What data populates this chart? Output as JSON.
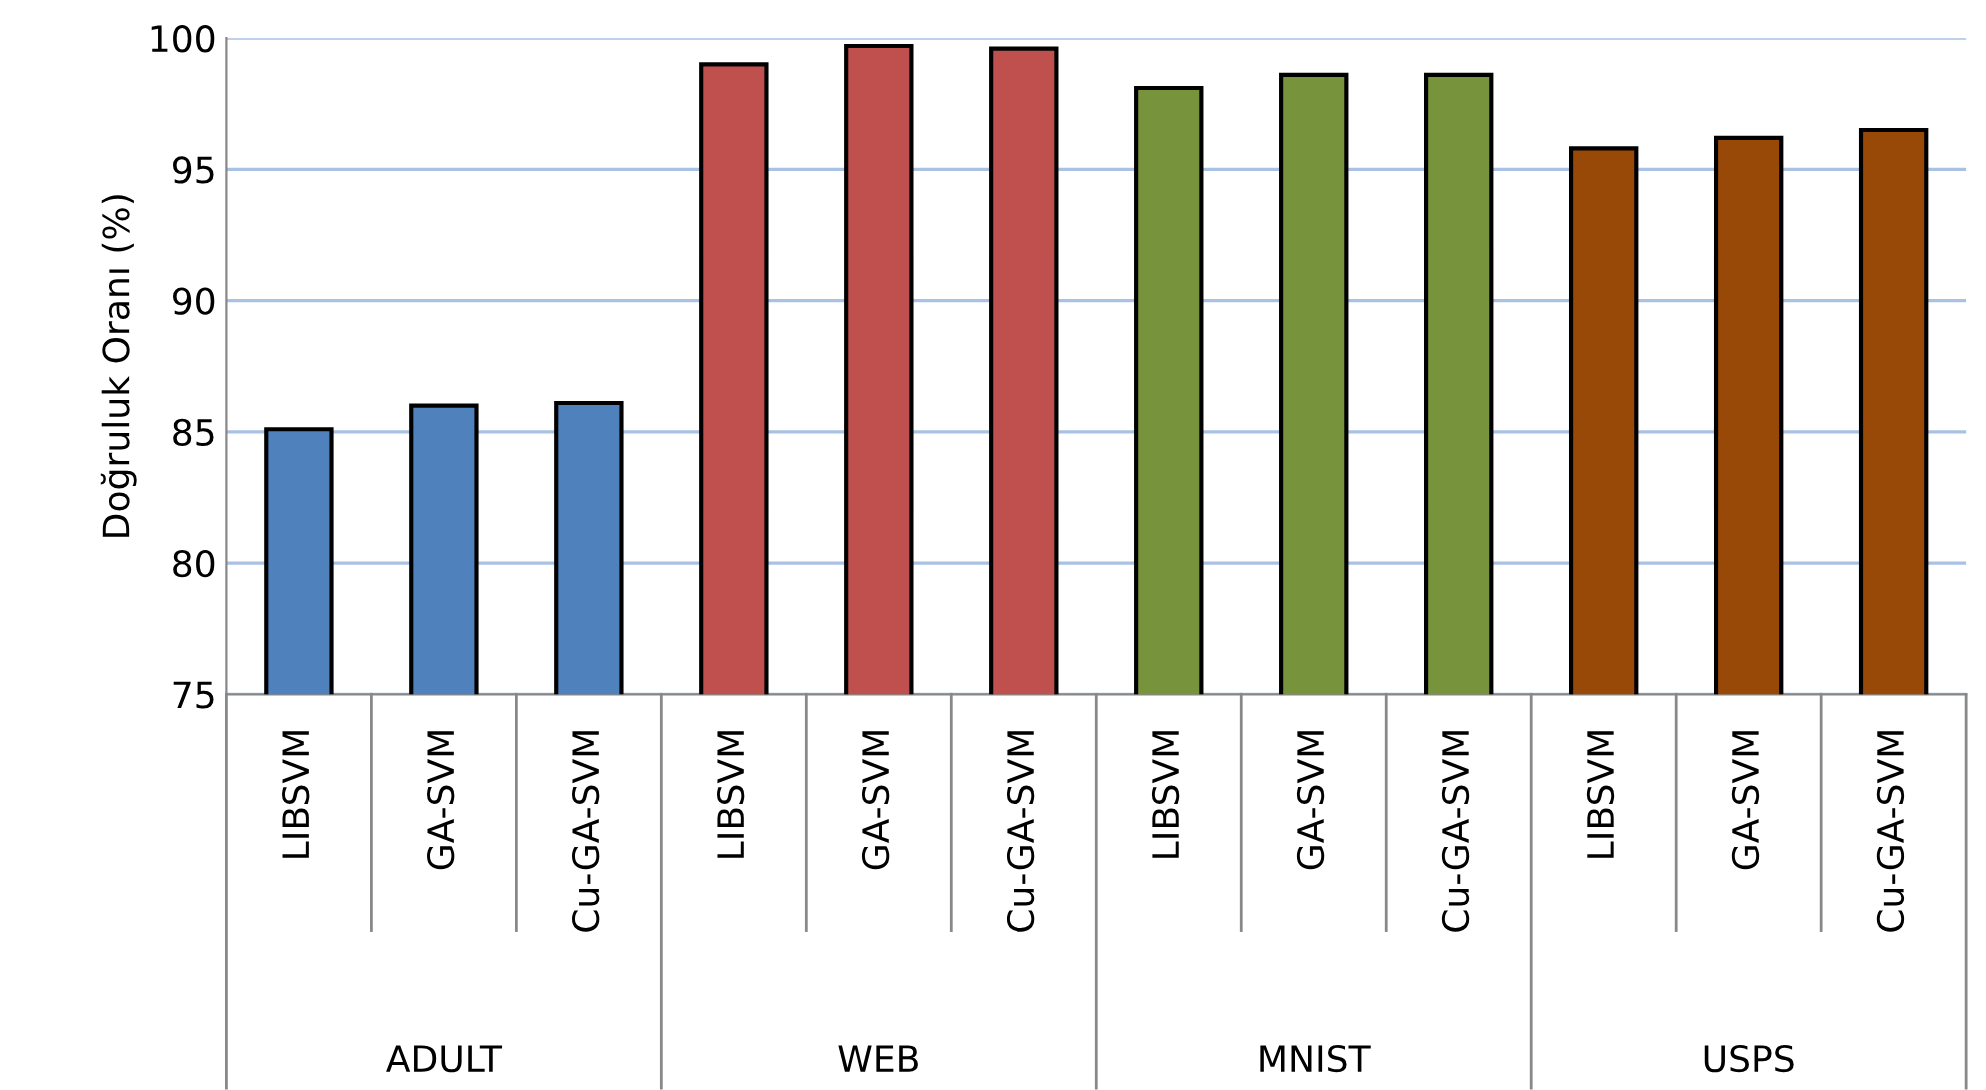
{
  "chart_data": {
    "type": "bar",
    "ylabel": "Doğruluk Oranı (%)",
    "categories": [
      "LIBSVM",
      "GA-SVM",
      "Cu-GA-SVM",
      "LIBSVM",
      "GA-SVM",
      "Cu-GA-SVM",
      "LIBSVM",
      "GA-SVM",
      "Cu-GA-SVM",
      "LIBSVM",
      "GA-SVM",
      "Cu-GA-SVM"
    ],
    "values": [
      85.1,
      86.0,
      86.1,
      99.0,
      99.7,
      99.6,
      98.1,
      98.6,
      98.6,
      95.8,
      96.2,
      96.5
    ],
    "colors": [
      "#4f81bd",
      "#4f81bd",
      "#4f81bd",
      "#c0504d",
      "#c0504d",
      "#c0504d",
      "#77933c",
      "#77933c",
      "#77933c",
      "#984807",
      "#984807",
      "#984807"
    ],
    "annotations": [
      "ADULT",
      "WEB",
      "MNIST",
      "USPS"
    ],
    "ylim": [
      75,
      100
    ],
    "yticks": [
      75,
      80,
      85,
      90,
      95,
      100
    ],
    "grid": "y",
    "legend": false
  }
}
